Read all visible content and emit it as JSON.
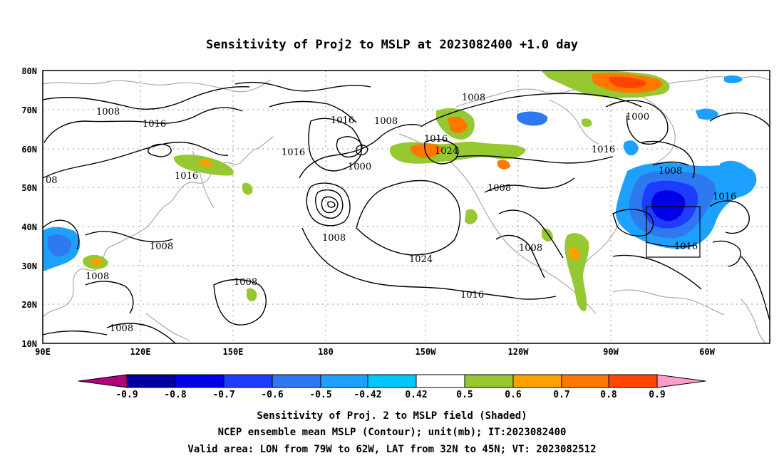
{
  "title": "Sensitivity of Proj2 to MSLP at 2023082400 +1.0 day",
  "axes": {
    "x_ticks": [
      "90E",
      "120E",
      "150E",
      "180",
      "150W",
      "120W",
      "90W",
      "60W"
    ],
    "y_ticks": [
      "80N",
      "70N",
      "60N",
      "50N",
      "40N",
      "30N",
      "20N",
      "10N"
    ],
    "lon_range": [
      90,
      325
    ],
    "lat_range": [
      10,
      80
    ]
  },
  "contour_labels": [
    "08",
    "1008",
    "1016",
    "1008",
    "1016",
    "1016",
    "1008",
    "1000",
    "1016",
    "1024",
    "1008",
    "1016",
    "1008",
    "1016",
    "1000",
    "1008",
    "1016",
    "1008",
    "1008",
    "1008",
    "1008",
    "1024",
    "1016",
    "1008",
    "1016"
  ],
  "colorbar": {
    "labels": [
      "-0.9",
      "-0.8",
      "-0.7",
      "-0.6",
      "-0.5",
      "-0.42",
      "0.42",
      "0.5",
      "0.6",
      "0.7",
      "0.8",
      "0.9"
    ],
    "colors": [
      "#b3007d",
      "#0000a0",
      "#0000e6",
      "#1e3cff",
      "#2e78f0",
      "#1ea0ff",
      "#00c8ff",
      "#ffffff",
      "#96c832",
      "#ffa000",
      "#ff7800",
      "#ff4500",
      "#ff0000",
      "#ff9ec8"
    ]
  },
  "captions": [
    "Sensitivity of Proj. 2 to MSLP field (Shaded)",
    "NCEP ensemble mean MSLP (Contour); unit(mb); IT:2023082400",
    "Valid area: LON from 79W to 62W, LAT from 32N to 45N; VT: 2023082512"
  ],
  "valid_area": {
    "lon": [
      281,
      298
    ],
    "lat": [
      32,
      45
    ]
  }
}
